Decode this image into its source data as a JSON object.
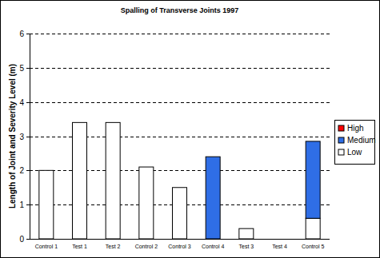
{
  "chart_data": {
    "type": "bar",
    "title": "Spalling of Transverse Joints 1997",
    "y_label": "Length of Joint and Severity Level (m)",
    "categories": [
      "Control 1",
      "Test 1",
      "Test 2",
      "Control 2",
      "Control 3",
      "Control 4",
      "Test 3",
      "Test 4",
      "Control 5"
    ],
    "series": [
      {
        "name": "Low",
        "color": "#ffffff",
        "values": [
          2.0,
          3.4,
          3.4,
          2.1,
          1.5,
          0,
          0.3,
          0,
          0.6
        ]
      },
      {
        "name": "Medium",
        "color": "#2f6ee6",
        "values": [
          0,
          0,
          0,
          0,
          0,
          2.4,
          0,
          0,
          2.25
        ]
      },
      {
        "name": "High",
        "color": "#ff0000",
        "values": [
          0,
          0,
          0,
          0,
          0,
          0,
          0,
          0,
          0
        ]
      }
    ],
    "stacked": true,
    "ylim": [
      0,
      6
    ],
    "yticks": [
      0,
      1,
      2,
      3,
      4,
      5,
      6
    ],
    "grid": true,
    "legend": "right"
  }
}
